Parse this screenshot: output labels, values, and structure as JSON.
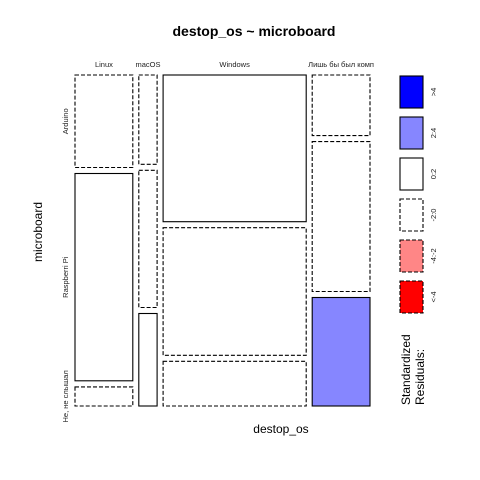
{
  "chart_data": {
    "type": "mosaic",
    "title": "destop_os ~ microboard",
    "xlabel": "destop_os",
    "ylabel": "microboard",
    "columns": [
      "Linux",
      "macOS",
      "Windows",
      "Лишь бы был комп"
    ],
    "rows": [
      "Arduino",
      "Raspberri Pi",
      "Не, не слышал"
    ],
    "column_share": [
      0.19,
      0.06,
      0.47,
      0.19
    ],
    "cells": [
      {
        "column": "Linux",
        "row": "Arduino",
        "share": 0.29,
        "residual_bin": "-2:0"
      },
      {
        "column": "Linux",
        "row": "Raspberri Pi",
        "share": 0.65,
        "residual_bin": "0:2"
      },
      {
        "column": "Linux",
        "row": "Не, не слышал",
        "share": 0.06,
        "residual_bin": "-2:0"
      },
      {
        "column": "macOS",
        "row": "Arduino",
        "share": 0.28,
        "residual_bin": "-2:0"
      },
      {
        "column": "macOS",
        "row": "Raspberri Pi",
        "share": 0.43,
        "residual_bin": "-2:0"
      },
      {
        "column": "macOS",
        "row": "Не, не слышал",
        "share": 0.29,
        "residual_bin": "0:2"
      },
      {
        "column": "Windows",
        "row": "Arduino",
        "share": 0.46,
        "residual_bin": "0:2"
      },
      {
        "column": "Windows",
        "row": "Raspberri Pi",
        "share": 0.4,
        "residual_bin": "-2:0"
      },
      {
        "column": "Windows",
        "row": "Не, не слышал",
        "share": 0.14,
        "residual_bin": "-2:0"
      },
      {
        "column": "Лишь бы был комп",
        "row": "Arduino",
        "share": 0.19,
        "residual_bin": "-2:0"
      },
      {
        "column": "Лишь бы был комп",
        "row": "Raspberri Pi",
        "share": 0.47,
        "residual_bin": "-2:0"
      },
      {
        "column": "Лишь бы был комп",
        "row": "Не, не слышал",
        "share": 0.34,
        "residual_bin": "2:4"
      }
    ],
    "legend": {
      "title_lines": [
        "Standardized",
        "Residuals:"
      ],
      "placement": "right",
      "bins": [
        {
          "label": ">4",
          "color": "#0000ff",
          "dashed": false
        },
        {
          "label": "2:4",
          "color": "#8686ff",
          "dashed": false
        },
        {
          "label": "0:2",
          "color": "#ffffff",
          "dashed": false
        },
        {
          "label": "-2:0",
          "color": "#ffffff",
          "dashed": true
        },
        {
          "label": "-4:-2",
          "color": "#ff8686",
          "dashed": true
        },
        {
          "label": "<-4",
          "color": "#ff0000",
          "dashed": true
        }
      ]
    }
  }
}
